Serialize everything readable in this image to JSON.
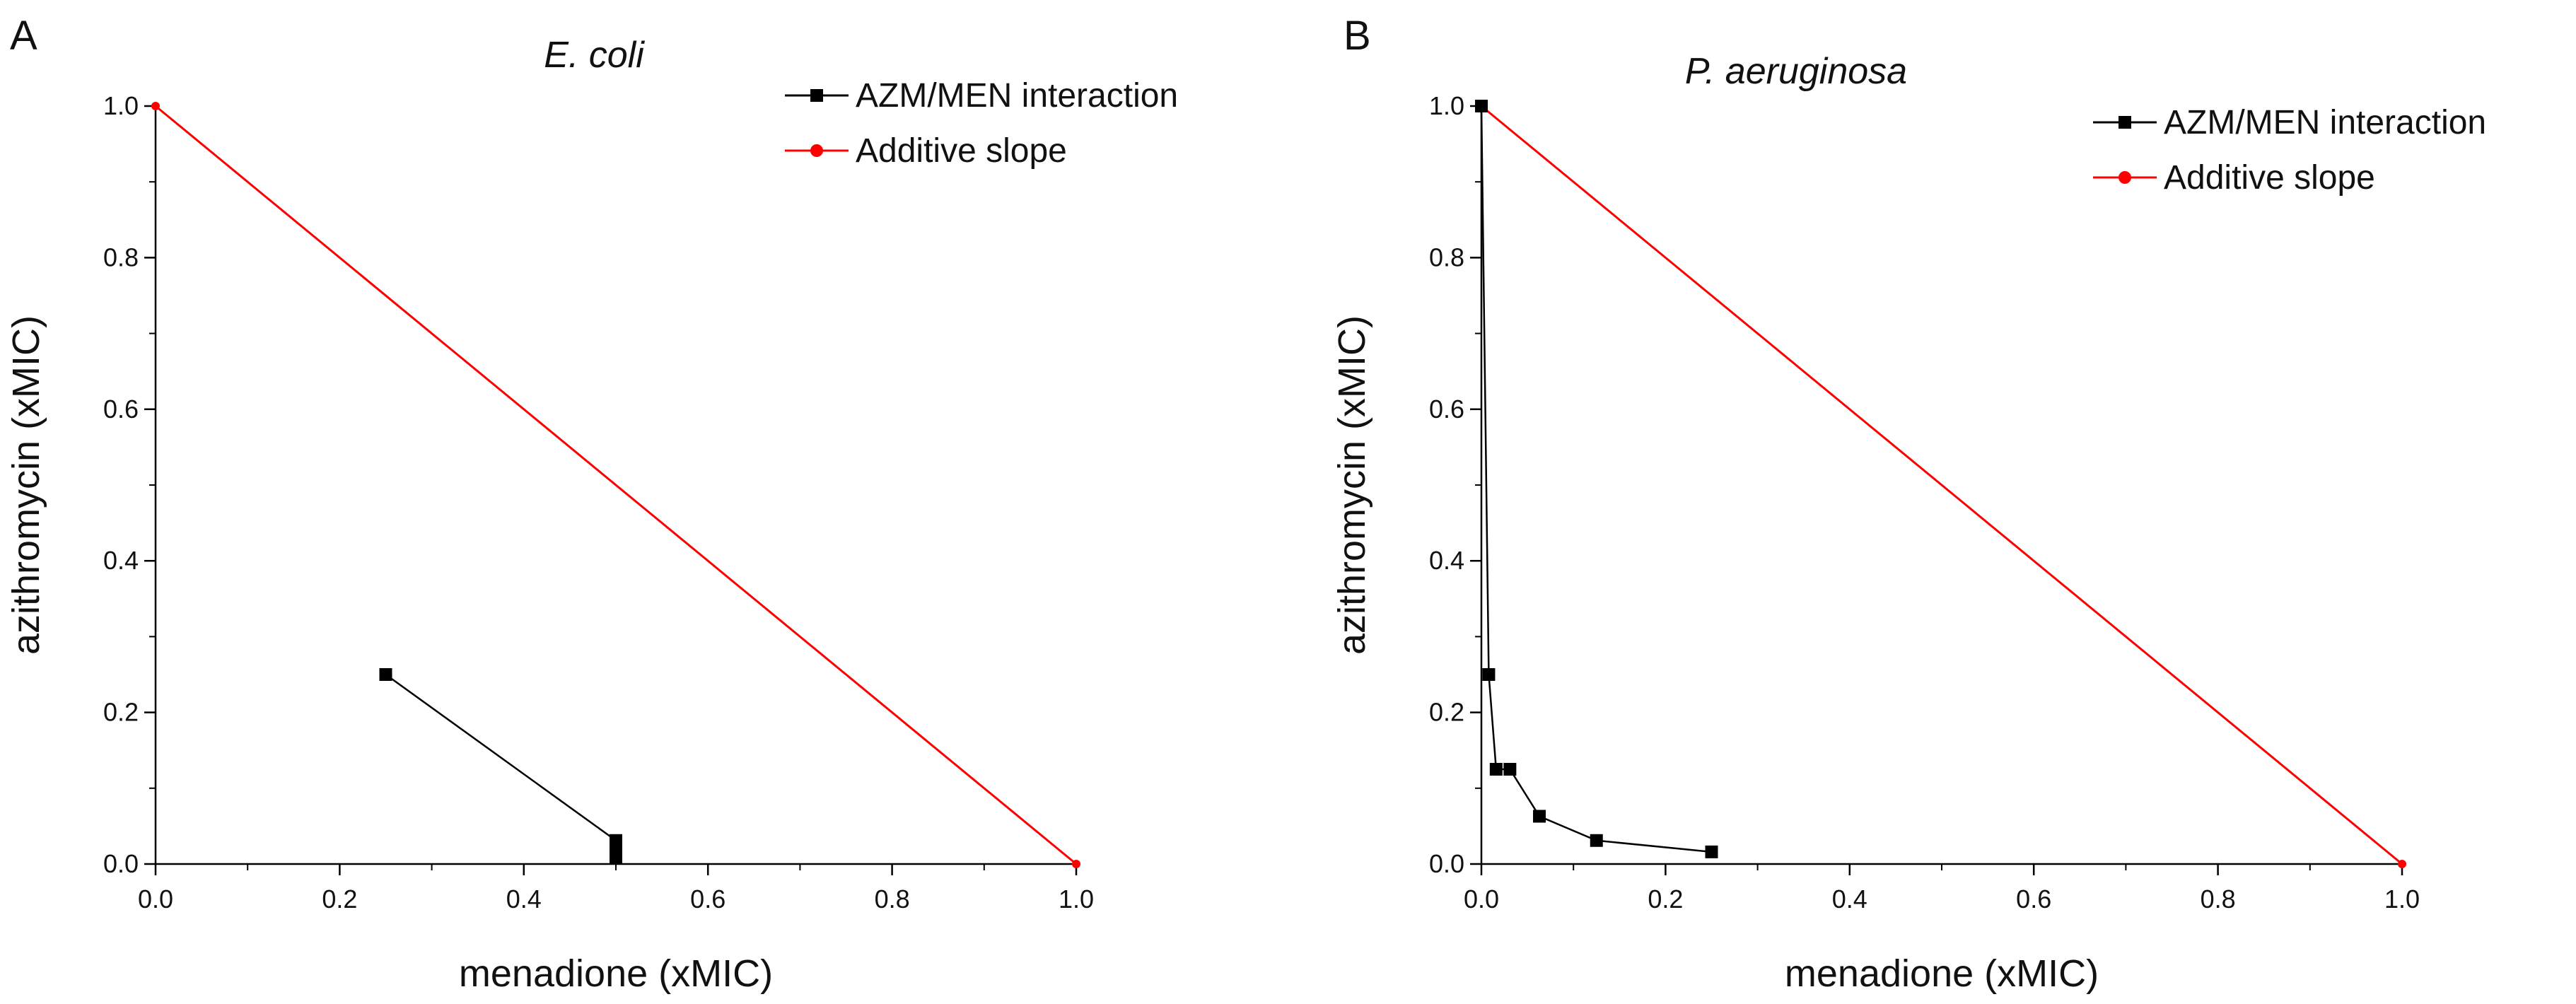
{
  "chart_data": [
    {
      "type": "line",
      "panel": "A",
      "title": "E. coli",
      "xlabel": "menadione (xMIC)",
      "ylabel": "azithromycin (xMIC)",
      "xlim": [
        0,
        1.0
      ],
      "ylim": [
        0,
        1.0
      ],
      "xticks": [
        "0.0",
        "0.2",
        "0.4",
        "0.6",
        "0.8",
        "1.0"
      ],
      "yticks": [
        "0.0",
        "0.2",
        "0.4",
        "0.6",
        "0.8",
        "1.0"
      ],
      "legend_position": "top-right",
      "series": [
        {
          "name": "AZM/MEN interaction",
          "color": "#000000",
          "marker": "square",
          "x": [
            0.25,
            0.5,
            0.5,
            0.5
          ],
          "y": [
            0.25,
            0.031,
            0.016,
            0.008
          ]
        },
        {
          "name": "Additive slope",
          "color": "#ff0000",
          "marker": "circle",
          "x": [
            0.0,
            1.0
          ],
          "y": [
            1.0,
            0.0
          ]
        }
      ]
    },
    {
      "type": "line",
      "panel": "B",
      "title": "P. aeruginosa",
      "xlabel": "menadione (xMIC)",
      "ylabel": "azithromycin (xMIC)",
      "xlim": [
        0,
        1.0
      ],
      "ylim": [
        0,
        1.0
      ],
      "xticks": [
        "0.0",
        "0.2",
        "0.4",
        "0.6",
        "0.8",
        "1.0"
      ],
      "yticks": [
        "0.0",
        "0.2",
        "0.4",
        "0.6",
        "0.8",
        "1.0"
      ],
      "legend_position": "top-right",
      "series": [
        {
          "name": "AZM/MEN interaction",
          "color": "#000000",
          "marker": "square",
          "x": [
            0.0,
            0.008,
            0.016,
            0.031,
            0.063,
            0.125,
            0.25
          ],
          "y": [
            1.0,
            0.25,
            0.125,
            0.125,
            0.063,
            0.031,
            0.016
          ]
        },
        {
          "name": "Additive slope",
          "color": "#ff0000",
          "marker": "circle",
          "x": [
            0.0,
            1.0
          ],
          "y": [
            1.0,
            0.0
          ]
        }
      ]
    }
  ]
}
